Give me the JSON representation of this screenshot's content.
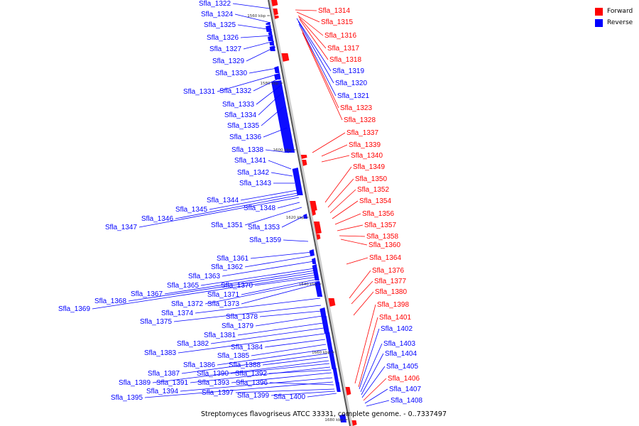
{
  "legend": {
    "forward_label": "Forward",
    "reverse_label": "Reverse",
    "forward_color": "#ff0000",
    "reverse_color": "#0000ff"
  },
  "caption": "Streptomyces flavogriseus ATCC 33331, complete genome. - 0..7337497",
  "ticks": [
    "1560 kbp",
    "1580 kbp",
    "1600 kbp",
    "1620 kbp",
    "1640 kbp",
    "1660 kbp",
    "1680 kbp"
  ],
  "genes": [
    {
      "id": "Sfla_1314",
      "strand": "forward"
    },
    {
      "id": "Sfla_1315",
      "strand": "forward"
    },
    {
      "id": "Sfla_1316",
      "strand": "forward"
    },
    {
      "id": "Sfla_1317",
      "strand": "forward"
    },
    {
      "id": "Sfla_1318",
      "strand": "forward"
    },
    {
      "id": "Sfla_1319",
      "strand": "reverse"
    },
    {
      "id": "Sfla_1320",
      "strand": "reverse"
    },
    {
      "id": "Sfla_1321",
      "strand": "reverse"
    },
    {
      "id": "Sfla_1322",
      "strand": "reverse"
    },
    {
      "id": "Sfla_1323",
      "strand": "forward"
    },
    {
      "id": "Sfla_1324",
      "strand": "reverse"
    },
    {
      "id": "Sfla_1325",
      "strand": "reverse"
    },
    {
      "id": "Sfla_1326",
      "strand": "reverse"
    },
    {
      "id": "Sfla_1327",
      "strand": "reverse"
    },
    {
      "id": "Sfla_1328",
      "strand": "forward"
    },
    {
      "id": "Sfla_1329",
      "strand": "reverse"
    },
    {
      "id": "Sfla_1330",
      "strand": "reverse"
    },
    {
      "id": "Sfla_1331",
      "strand": "reverse"
    },
    {
      "id": "Sfla_1332",
      "strand": "reverse"
    },
    {
      "id": "Sfla_1333",
      "strand": "reverse"
    },
    {
      "id": "Sfla_1334",
      "strand": "reverse"
    },
    {
      "id": "Sfla_1335",
      "strand": "reverse"
    },
    {
      "id": "Sfla_1336",
      "strand": "reverse"
    },
    {
      "id": "Sfla_1337",
      "strand": "forward"
    },
    {
      "id": "Sfla_1338",
      "strand": "reverse"
    },
    {
      "id": "Sfla_1339",
      "strand": "forward"
    },
    {
      "id": "Sfla_1340",
      "strand": "forward"
    },
    {
      "id": "Sfla_1341",
      "strand": "reverse"
    },
    {
      "id": "Sfla_1342",
      "strand": "reverse"
    },
    {
      "id": "Sfla_1343",
      "strand": "reverse"
    },
    {
      "id": "Sfla_1344",
      "strand": "reverse"
    },
    {
      "id": "Sfla_1345",
      "strand": "reverse"
    },
    {
      "id": "Sfla_1346",
      "strand": "reverse"
    },
    {
      "id": "Sfla_1347",
      "strand": "reverse"
    },
    {
      "id": "Sfla_1348",
      "strand": "reverse"
    },
    {
      "id": "Sfla_1349",
      "strand": "forward"
    },
    {
      "id": "Sfla_1350",
      "strand": "forward"
    },
    {
      "id": "Sfla_1351",
      "strand": "reverse"
    },
    {
      "id": "Sfla_1352",
      "strand": "forward"
    },
    {
      "id": "Sfla_1353",
      "strand": "reverse"
    },
    {
      "id": "Sfla_1354",
      "strand": "forward"
    },
    {
      "id": "Sfla_1356",
      "strand": "forward"
    },
    {
      "id": "Sfla_1357",
      "strand": "forward"
    },
    {
      "id": "Sfla_1358",
      "strand": "forward"
    },
    {
      "id": "Sfla_1359",
      "strand": "reverse"
    },
    {
      "id": "Sfla_1360",
      "strand": "forward"
    },
    {
      "id": "Sfla_1361",
      "strand": "reverse"
    },
    {
      "id": "Sfla_1362",
      "strand": "reverse"
    },
    {
      "id": "Sfla_1363",
      "strand": "reverse"
    },
    {
      "id": "Sfla_1364",
      "strand": "forward"
    },
    {
      "id": "Sfla_1365",
      "strand": "reverse"
    },
    {
      "id": "Sfla_1367",
      "strand": "reverse"
    },
    {
      "id": "Sfla_1368",
      "strand": "reverse"
    },
    {
      "id": "Sfla_1369",
      "strand": "reverse"
    },
    {
      "id": "Sfla_1370",
      "strand": "reverse"
    },
    {
      "id": "Sfla_1371",
      "strand": "reverse"
    },
    {
      "id": "Sfla_1372",
      "strand": "reverse"
    },
    {
      "id": "Sfla_1373",
      "strand": "reverse"
    },
    {
      "id": "Sfla_1374",
      "strand": "reverse"
    },
    {
      "id": "Sfla_1375",
      "strand": "reverse"
    },
    {
      "id": "Sfla_1376",
      "strand": "forward"
    },
    {
      "id": "Sfla_1377",
      "strand": "forward"
    },
    {
      "id": "Sfla_1378",
      "strand": "reverse"
    },
    {
      "id": "Sfla_1379",
      "strand": "reverse"
    },
    {
      "id": "Sfla_1380",
      "strand": "forward"
    },
    {
      "id": "Sfla_1381",
      "strand": "reverse"
    },
    {
      "id": "Sfla_1382",
      "strand": "reverse"
    },
    {
      "id": "Sfla_1383",
      "strand": "reverse"
    },
    {
      "id": "Sfla_1384",
      "strand": "reverse"
    },
    {
      "id": "Sfla_1385",
      "strand": "reverse"
    },
    {
      "id": "Sfla_1386",
      "strand": "reverse"
    },
    {
      "id": "Sfla_1387",
      "strand": "reverse"
    },
    {
      "id": "Sfla_1388",
      "strand": "reverse"
    },
    {
      "id": "Sfla_1389",
      "strand": "reverse"
    },
    {
      "id": "Sfla_1390",
      "strand": "reverse"
    },
    {
      "id": "Sfla_1391",
      "strand": "reverse"
    },
    {
      "id": "Sfla_1392",
      "strand": "reverse"
    },
    {
      "id": "Sfla_1393",
      "strand": "reverse"
    },
    {
      "id": "Sfla_1394",
      "strand": "reverse"
    },
    {
      "id": "Sfla_1395",
      "strand": "reverse"
    },
    {
      "id": "Sfla_1396",
      "strand": "reverse"
    },
    {
      "id": "Sfla_1397",
      "strand": "reverse"
    },
    {
      "id": "Sfla_1398",
      "strand": "forward"
    },
    {
      "id": "Sfla_1399",
      "strand": "reverse"
    },
    {
      "id": "Sfla_1400",
      "strand": "reverse"
    },
    {
      "id": "Sfla_1401",
      "strand": "forward"
    },
    {
      "id": "Sfla_1402",
      "strand": "reverse"
    },
    {
      "id": "Sfla_1403",
      "strand": "reverse"
    },
    {
      "id": "Sfla_1404",
      "strand": "reverse"
    },
    {
      "id": "Sfla_1405",
      "strand": "reverse"
    },
    {
      "id": "Sfla_1406",
      "strand": "forward"
    },
    {
      "id": "Sfla_1407",
      "strand": "reverse"
    },
    {
      "id": "Sfla_1408",
      "strand": "reverse"
    }
  ]
}
